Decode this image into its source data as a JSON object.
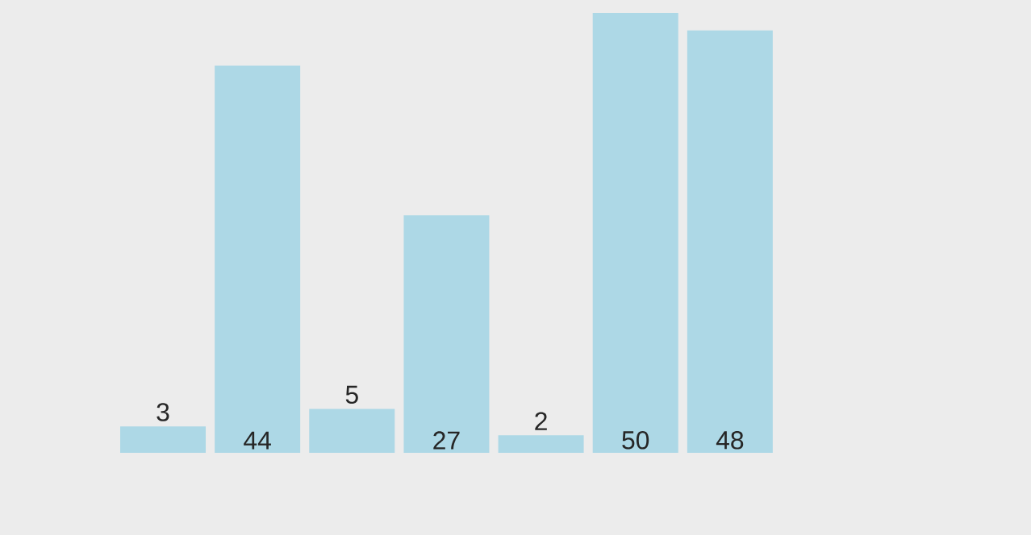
{
  "chart_data": {
    "type": "bar",
    "categories": [
      null,
      null,
      null,
      null,
      null,
      null,
      null
    ],
    "values": [
      3,
      44,
      5,
      27,
      2,
      50,
      48
    ],
    "color": "#add8e6",
    "data_labels": true
  }
}
